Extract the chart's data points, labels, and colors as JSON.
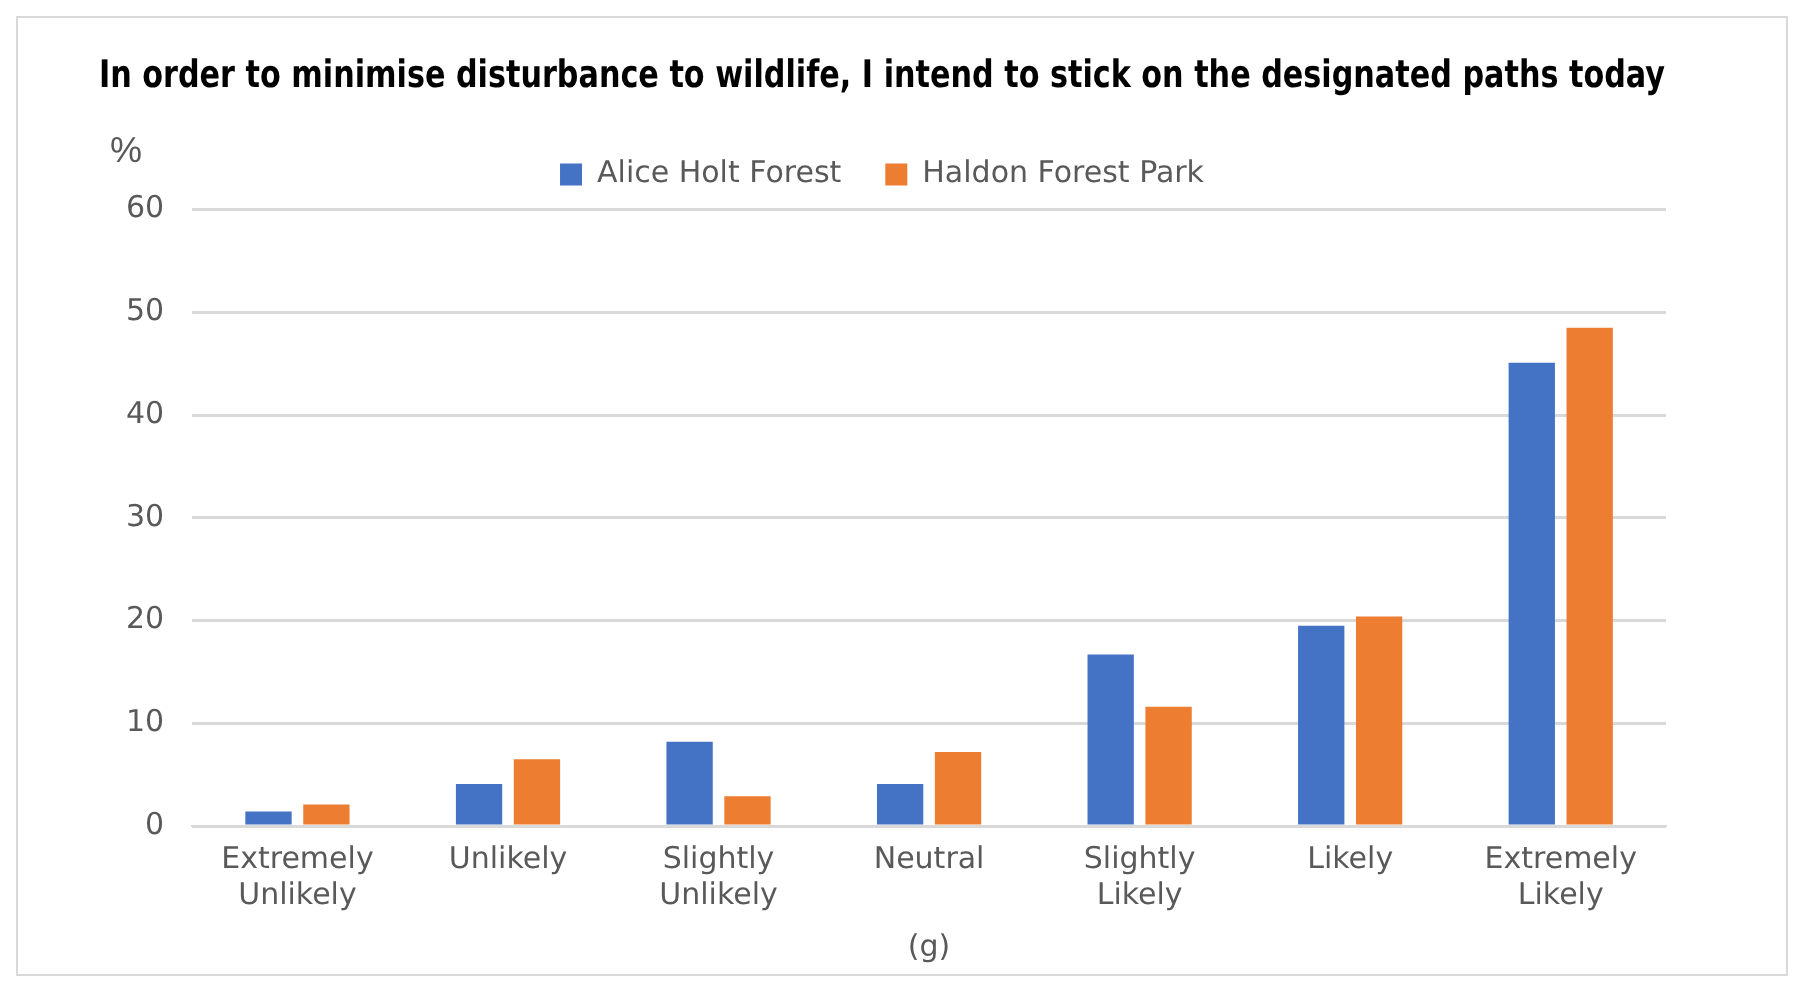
{
  "chart_data": {
    "type": "bar",
    "title": "In order to minimise disturbance to wildlife, I intend to stick on the designated paths today",
    "ylabel": "%",
    "xlabel": "(g)",
    "categories": [
      "Extremely Unlikely",
      "Unlikely",
      "Slightly Unlikely",
      "Neutral",
      "Slightly Likely",
      "Likely",
      "Extremely Likely"
    ],
    "series": [
      {
        "name": "Alice Holt Forest",
        "color": "#4472c4",
        "values": [
          1.4,
          4.1,
          8.2,
          4.1,
          16.7,
          19.5,
          45.1
        ]
      },
      {
        "name": "Haldon Forest Park",
        "color": "#ed7d31",
        "values": [
          2.1,
          6.5,
          2.9,
          7.2,
          11.6,
          20.4,
          48.5
        ]
      }
    ],
    "ylim": [
      0,
      60
    ],
    "yticks": [
      0,
      10,
      20,
      30,
      40,
      50,
      60
    ],
    "grid": "y",
    "legend": "top"
  }
}
